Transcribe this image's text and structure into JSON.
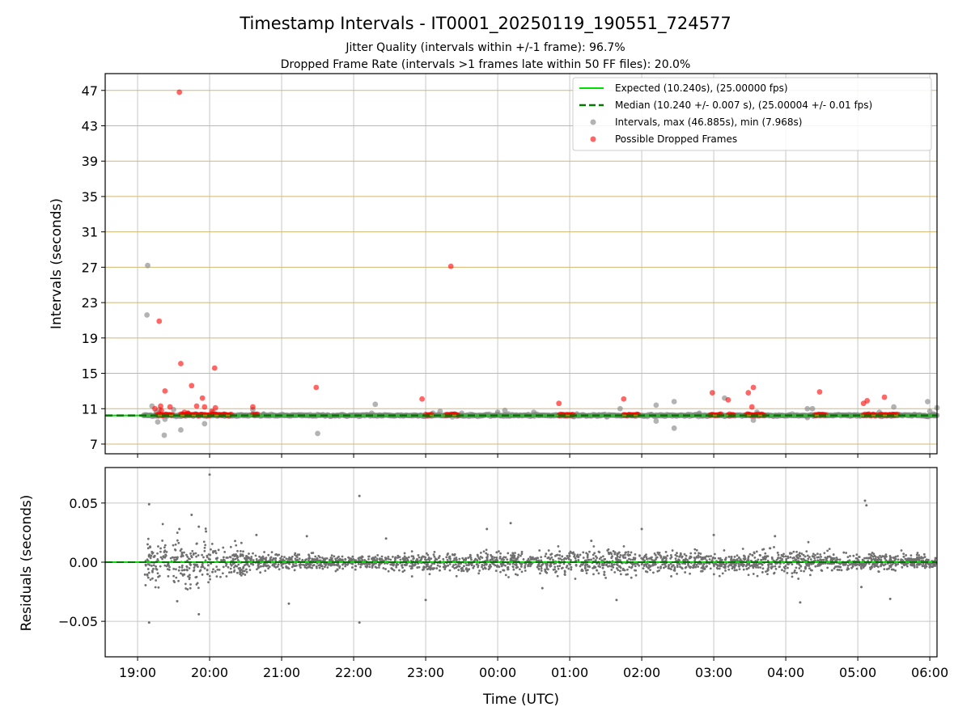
{
  "colors": {
    "expected": "#00e000",
    "median": "#007a00",
    "intervals": "#808080",
    "dropped": "#ff0000",
    "hgrid_top": "#d4b870",
    "grid": "#c8c8c8",
    "residuals": "#707070"
  },
  "chart_data": {
    "type": "scatter",
    "title": "Timestamp Intervals - IT0001_20250119_190551_724577",
    "subtitles": [
      "Jitter Quality (intervals within +/-1 frame): 96.7%",
      "Dropped Frame Rate (intervals >1 frames late within 50 FF files): 20.0%"
    ],
    "x_axis": {
      "label": "Time (UTC)",
      "unit": "hours since 19:00 UTC (2025-01-19)",
      "range": [
        -0.45,
        11.1
      ],
      "ticks": [
        0,
        1,
        2,
        3,
        4,
        5,
        6,
        7,
        8,
        9,
        10,
        11
      ],
      "tick_labels": [
        "19:00",
        "20:00",
        "21:00",
        "22:00",
        "23:00",
        "00:00",
        "01:00",
        "02:00",
        "03:00",
        "04:00",
        "05:00",
        "06:00"
      ]
    },
    "top_panel": {
      "ylabel": "Intervals (seconds)",
      "ylim": [
        5.9,
        48.9
      ],
      "yticks": [
        7,
        11,
        15,
        19,
        23,
        27,
        31,
        35,
        39,
        43,
        47
      ],
      "expected_value": 10.24,
      "median_value": 10.24,
      "legend": {
        "position": "top-right",
        "entries": [
          {
            "kind": "line",
            "style": "solid",
            "label": "Expected (10.240s), (25.00000 fps)"
          },
          {
            "kind": "line",
            "style": "dashed",
            "label": "Median (10.240 +/- 0.007 s), (25.00004 +/- 0.01 fps)"
          },
          {
            "kind": "dot",
            "color": "gray",
            "label": "Intervals, max (46.885s), min (7.968s)"
          },
          {
            "kind": "dot",
            "color": "red",
            "label": "Possible Dropped Frames"
          }
        ]
      },
      "series": [
        {
          "name": "Intervals",
          "points": [
            [
              0.14,
              27.2
            ],
            [
              0.13,
              21.6
            ],
            [
              0.2,
              11.3
            ],
            [
              0.26,
              10.6
            ],
            [
              0.28,
              9.5
            ],
            [
              0.3,
              10.9
            ],
            [
              0.38,
              9.8
            ],
            [
              0.37,
              8.0
            ],
            [
              0.5,
              10.9
            ],
            [
              0.6,
              8.6
            ],
            [
              0.7,
              10.5
            ],
            [
              0.8,
              10.4
            ],
            [
              0.93,
              9.3
            ],
            [
              1.05,
              10.6
            ],
            [
              1.2,
              10.3
            ],
            [
              1.6,
              10.9
            ],
            [
              1.75,
              10.4
            ],
            [
              2.5,
              8.2
            ],
            [
              3.3,
              11.5
            ],
            [
              3.25,
              10.5
            ],
            [
              4.1,
              10.5
            ],
            [
              4.2,
              10.7
            ],
            [
              4.4,
              10.4
            ],
            [
              4.5,
              10.5
            ],
            [
              4.65,
              10.3
            ],
            [
              5.1,
              10.8
            ],
            [
              5.0,
              10.6
            ],
            [
              5.15,
              10.4
            ],
            [
              5.5,
              10.6
            ],
            [
              6.1,
              10.4
            ],
            [
              6.4,
              10.3
            ],
            [
              6.7,
              11.0
            ],
            [
              6.95,
              10.3
            ],
            [
              7.2,
              11.4
            ],
            [
              7.2,
              9.6
            ],
            [
              7.45,
              11.8
            ],
            [
              7.45,
              8.8
            ],
            [
              7.8,
              10.5
            ],
            [
              8.15,
              12.2
            ],
            [
              8.55,
              9.7
            ],
            [
              8.6,
              10.6
            ],
            [
              9.3,
              11.0
            ],
            [
              9.37,
              11.0
            ],
            [
              9.3,
              10.0
            ],
            [
              9.9,
              10.3
            ],
            [
              10.3,
              10.6
            ],
            [
              10.5,
              11.2
            ],
            [
              10.97,
              11.8
            ],
            [
              11.0,
              10.7
            ],
            [
              11.05,
              10.4
            ],
            [
              11.1,
              11.1
            ],
            [
              11.07,
              10.2
            ]
          ]
        },
        {
          "name": "Possible Dropped Frames",
          "points": [
            [
              0.58,
              46.8
            ],
            [
              4.35,
              27.1
            ],
            [
              0.3,
              20.9
            ],
            [
              0.6,
              16.1
            ],
            [
              1.07,
              15.6
            ],
            [
              0.75,
              13.6
            ],
            [
              0.38,
              13.0
            ],
            [
              2.48,
              13.4
            ],
            [
              8.55,
              13.4
            ],
            [
              8.48,
              12.8
            ],
            [
              9.47,
              12.9
            ],
            [
              7.98,
              12.8
            ],
            [
              0.9,
              12.2
            ],
            [
              5.85,
              11.6
            ],
            [
              3.95,
              12.1
            ],
            [
              6.75,
              12.1
            ],
            [
              8.2,
              12.0
            ],
            [
              10.13,
              11.9
            ],
            [
              10.08,
              11.6
            ],
            [
              10.37,
              12.3
            ],
            [
              0.32,
              11.3
            ],
            [
              0.45,
              11.2
            ],
            [
              0.24,
              11.0
            ],
            [
              0.82,
              11.3
            ],
            [
              0.93,
              11.2
            ],
            [
              1.08,
              11.1
            ],
            [
              1.6,
              11.2
            ],
            [
              8.53,
              11.2
            ],
            [
              0.33,
              10.8
            ],
            [
              0.65,
              10.6
            ],
            [
              0.7,
              10.5
            ],
            [
              1.03,
              10.7
            ]
          ],
          "clusters": [
            {
              "x_start": 0.27,
              "x_end": 0.48
            },
            {
              "x_start": 0.6,
              "x_end": 1.3
            },
            {
              "x_start": 1.6,
              "x_end": 1.66
            },
            {
              "x_start": 4.0,
              "x_end": 4.08
            },
            {
              "x_start": 4.28,
              "x_end": 4.45
            },
            {
              "x_start": 5.85,
              "x_end": 6.05
            },
            {
              "x_start": 6.75,
              "x_end": 6.95
            },
            {
              "x_start": 7.95,
              "x_end": 8.1
            },
            {
              "x_start": 8.2,
              "x_end": 8.28
            },
            {
              "x_start": 8.45,
              "x_end": 8.7
            },
            {
              "x_start": 9.4,
              "x_end": 9.55
            },
            {
              "x_start": 10.08,
              "x_end": 10.25
            },
            {
              "x_start": 10.3,
              "x_end": 10.5
            },
            {
              "x_start": 10.5,
              "x_end": 10.55
            }
          ]
        }
      ]
    },
    "bottom_panel": {
      "ylabel": "Residuals (seconds)",
      "ylim": [
        -0.08,
        0.08
      ],
      "yticks": [
        -0.05,
        0.0,
        0.05
      ],
      "ytick_labels": [
        "−0.05",
        "0.00",
        "0.05"
      ],
      "zero_line": 0.0,
      "series": [
        {
          "name": "Residuals",
          "spread_profile": [
            [
              0.1,
              0.018
            ],
            [
              0.6,
              0.018
            ],
            [
              1.2,
              0.013
            ],
            [
              1.8,
              0.006
            ],
            [
              3.0,
              0.005
            ],
            [
              4.0,
              0.006
            ],
            [
              5.0,
              0.008
            ],
            [
              6.0,
              0.009
            ],
            [
              7.0,
              0.009
            ],
            [
              8.0,
              0.007
            ],
            [
              9.0,
              0.009
            ],
            [
              10.0,
              0.006
            ],
            [
              11.1,
              0.005
            ]
          ],
          "outliers": [
            [
              0.16,
              0.049
            ],
            [
              0.16,
              -0.051
            ],
            [
              1.0,
              0.074
            ],
            [
              3.08,
              0.056
            ],
            [
              3.08,
              -0.051
            ],
            [
              10.1,
              0.052
            ],
            [
              10.12,
              0.048
            ],
            [
              1.65,
              0.023
            ],
            [
              0.75,
              0.04
            ],
            [
              0.85,
              -0.044
            ],
            [
              0.58,
              0.028
            ],
            [
              0.85,
              0.03
            ],
            [
              0.55,
              -0.033
            ],
            [
              0.95,
              0.026
            ],
            [
              2.1,
              -0.035
            ],
            [
              4.0,
              -0.032
            ],
            [
              5.18,
              0.033
            ],
            [
              6.65,
              -0.032
            ],
            [
              7.0,
              0.028
            ],
            [
              8.0,
              0.023
            ],
            [
              8.85,
              0.022
            ],
            [
              9.2,
              -0.034
            ],
            [
              10.45,
              -0.031
            ],
            [
              10.05,
              -0.021
            ],
            [
              4.85,
              0.028
            ],
            [
              5.62,
              -0.022
            ],
            [
              6.3,
              0.018
            ],
            [
              3.45,
              0.02
            ],
            [
              2.35,
              0.022
            ]
          ]
        }
      ]
    }
  }
}
